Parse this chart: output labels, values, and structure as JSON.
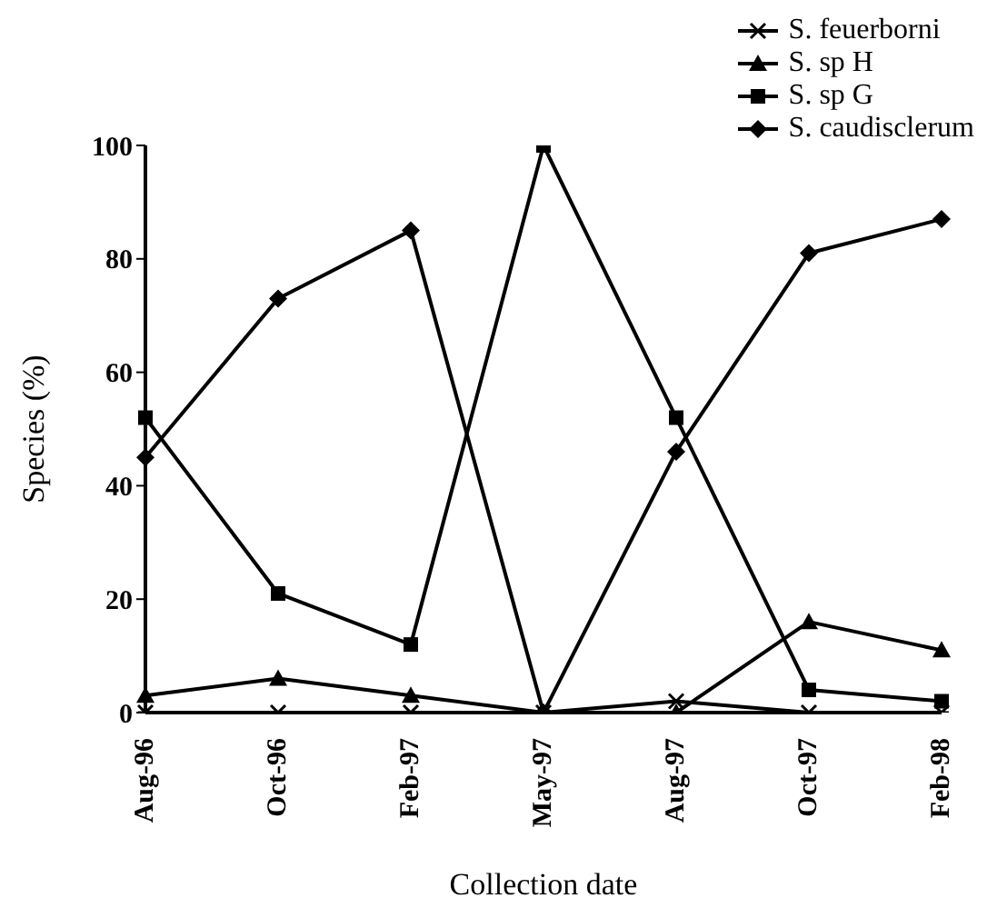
{
  "chart_data": {
    "type": "line",
    "xlabel": "Collection date",
    "ylabel": "Species (%)",
    "categories": [
      "Aug-96",
      "Oct-96",
      "Feb-97",
      "May-97",
      "Aug-97",
      "Oct-97",
      "Feb-98"
    ],
    "ylim": [
      0,
      100
    ],
    "yticks": [
      0,
      20,
      40,
      60,
      80,
      100
    ],
    "grid": false,
    "legend": "top right",
    "line_style": "solid",
    "series": [
      {
        "name": "S. feuerborni",
        "color": "#000000",
        "marker": "cross",
        "values": [
          0,
          0,
          0,
          0,
          2,
          0,
          0
        ]
      },
      {
        "name": "S. sp H",
        "color": "#000000",
        "marker": "triangle",
        "values": [
          3,
          6,
          3,
          0,
          0,
          16,
          11
        ]
      },
      {
        "name": "S. sp G",
        "color": "#000000",
        "marker": "square",
        "values": [
          52,
          21,
          12,
          100,
          52,
          4,
          2
        ]
      },
      {
        "name": "S. caudisclerum",
        "color": "#000000",
        "marker": "diamond",
        "values": [
          45,
          73,
          85,
          0,
          46,
          81,
          87
        ]
      }
    ]
  }
}
